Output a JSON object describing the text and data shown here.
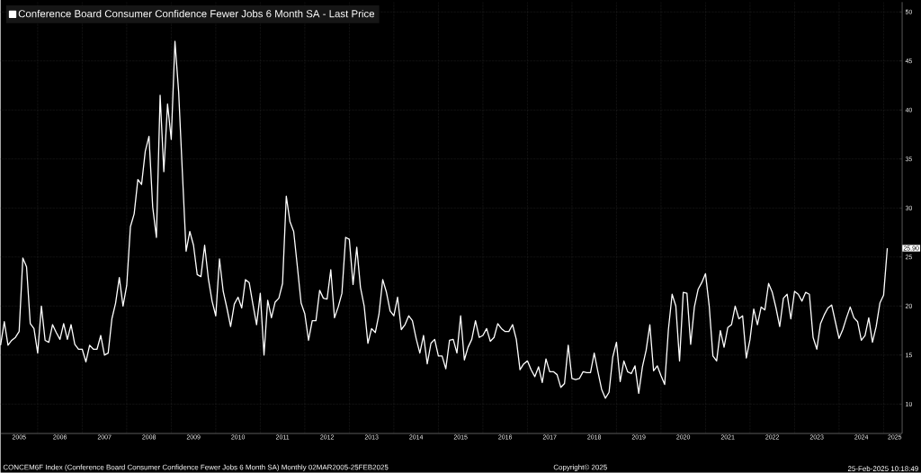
{
  "chart_data": {
    "type": "line",
    "x": [
      "2005-03",
      "2005-04",
      "2005-05",
      "2005-06",
      "2005-07",
      "2005-08",
      "2005-09",
      "2005-10",
      "2005-11",
      "2005-12",
      "2006-01",
      "2006-02",
      "2006-03",
      "2006-04",
      "2006-05",
      "2006-06",
      "2006-07",
      "2006-08",
      "2006-09",
      "2006-10",
      "2006-11",
      "2006-12",
      "2007-01",
      "2007-02",
      "2007-03",
      "2007-04",
      "2007-05",
      "2007-06",
      "2007-07",
      "2007-08",
      "2007-09",
      "2007-10",
      "2007-11",
      "2007-12",
      "2008-01",
      "2008-02",
      "2008-03",
      "2008-04",
      "2008-05",
      "2008-06",
      "2008-07",
      "2008-08",
      "2008-09",
      "2008-10",
      "2008-11",
      "2008-12",
      "2009-01",
      "2009-02",
      "2009-03",
      "2009-04",
      "2009-05",
      "2009-06",
      "2009-07",
      "2009-08",
      "2009-09",
      "2009-10",
      "2009-11",
      "2009-12",
      "2010-01",
      "2010-02",
      "2010-03",
      "2010-04",
      "2010-05",
      "2010-06",
      "2010-07",
      "2010-08",
      "2010-09",
      "2010-10",
      "2010-11",
      "2010-12",
      "2011-01",
      "2011-02",
      "2011-03",
      "2011-04",
      "2011-05",
      "2011-06",
      "2011-07",
      "2011-08",
      "2011-09",
      "2011-10",
      "2011-11",
      "2011-12",
      "2012-01",
      "2012-02",
      "2012-03",
      "2012-04",
      "2012-05",
      "2012-06",
      "2012-07",
      "2012-08",
      "2012-09",
      "2012-10",
      "2012-11",
      "2012-12",
      "2013-01",
      "2013-02",
      "2013-03",
      "2013-04",
      "2013-05",
      "2013-06",
      "2013-07",
      "2013-08",
      "2013-09",
      "2013-10",
      "2013-11",
      "2013-12",
      "2014-01",
      "2014-02",
      "2014-03",
      "2014-04",
      "2014-05",
      "2014-06",
      "2014-07",
      "2014-08",
      "2014-09",
      "2014-10",
      "2014-11",
      "2014-12",
      "2015-01",
      "2015-02",
      "2015-03",
      "2015-04",
      "2015-05",
      "2015-06",
      "2015-07",
      "2015-08",
      "2015-09",
      "2015-10",
      "2015-11",
      "2015-12",
      "2016-01",
      "2016-02",
      "2016-03",
      "2016-04",
      "2016-05",
      "2016-06",
      "2016-07",
      "2016-08",
      "2016-09",
      "2016-10",
      "2016-11",
      "2016-12",
      "2017-01",
      "2017-02",
      "2017-03",
      "2017-04",
      "2017-05",
      "2017-06",
      "2017-07",
      "2017-08",
      "2017-09",
      "2017-10",
      "2017-11",
      "2017-12",
      "2018-01",
      "2018-02",
      "2018-03",
      "2018-04",
      "2018-05",
      "2018-06",
      "2018-07",
      "2018-08",
      "2018-09",
      "2018-10",
      "2018-11",
      "2018-12",
      "2019-01",
      "2019-02",
      "2019-03",
      "2019-04",
      "2019-05",
      "2019-06",
      "2019-07",
      "2019-08",
      "2019-09",
      "2019-10",
      "2019-11",
      "2019-12",
      "2020-01",
      "2020-02",
      "2020-03",
      "2020-04",
      "2020-05",
      "2020-06",
      "2020-07",
      "2020-08",
      "2020-09",
      "2020-10",
      "2020-11",
      "2020-12",
      "2021-01",
      "2021-02",
      "2021-03",
      "2021-04",
      "2021-05",
      "2021-06",
      "2021-07",
      "2021-08",
      "2021-09",
      "2021-10",
      "2021-11",
      "2021-12",
      "2022-01",
      "2022-02",
      "2022-03",
      "2022-04",
      "2022-05",
      "2022-06",
      "2022-07",
      "2022-08",
      "2022-09",
      "2022-10",
      "2022-11",
      "2022-12",
      "2023-01",
      "2023-02",
      "2023-03",
      "2023-04",
      "2023-05",
      "2023-06",
      "2023-07",
      "2023-08",
      "2023-09",
      "2023-10",
      "2023-11",
      "2023-12",
      "2024-01",
      "2024-02",
      "2024-03",
      "2024-04",
      "2024-05",
      "2024-06",
      "2024-07",
      "2024-08",
      "2024-09",
      "2024-10",
      "2024-11",
      "2024-12",
      "2025-01",
      "2025-02"
    ],
    "series": [
      {
        "name": "Conference Board Consumer Confidence Fewer Jobs 6 Month SA - Last Price",
        "color": "#ffffff",
        "values": [
          16.0,
          18.4,
          16.0,
          16.5,
          16.8,
          17.4,
          24.9,
          24.0,
          18.2,
          17.7,
          15.2,
          20.0,
          16.5,
          16.3,
          18.1,
          17.3,
          16.6,
          18.2,
          16.6,
          18.1,
          16.1,
          15.6,
          15.6,
          14.3,
          16.0,
          15.6,
          15.6,
          17.0,
          15.0,
          15.2,
          18.7,
          20.3,
          22.9,
          20.0,
          22.1,
          28.1,
          29.4,
          32.9,
          32.4,
          35.8,
          37.3,
          30.1,
          27.0,
          41.5,
          33.7,
          40.6,
          37.0,
          47.0,
          41.8,
          33.6,
          25.6,
          27.6,
          26.2,
          23.2,
          23.0,
          26.2,
          22.8,
          20.5,
          19.0,
          24.8,
          21.5,
          19.8,
          17.9,
          20.2,
          20.9,
          19.8,
          22.7,
          22.4,
          20.2,
          18.1,
          21.3,
          15.0,
          20.6,
          18.8,
          20.4,
          20.8,
          22.3,
          31.2,
          28.6,
          27.6,
          24.0,
          20.3,
          19.2,
          16.5,
          18.5,
          18.5,
          21.6,
          20.8,
          20.7,
          23.7,
          18.8,
          19.9,
          21.3,
          27.0,
          26.8,
          22.2,
          26.0,
          21.9,
          20.0,
          16.2,
          17.7,
          17.3,
          19.2,
          22.7,
          21.4,
          19.5,
          19.0,
          20.9,
          17.6,
          18.1,
          19.0,
          18.5,
          16.7,
          15.2,
          17.0,
          14.1,
          16.2,
          16.6,
          14.9,
          14.9,
          13.6,
          16.5,
          16.6,
          15.2,
          19.0,
          14.5,
          15.8,
          16.6,
          18.5,
          16.8,
          17.0,
          17.7,
          16.4,
          16.8,
          18.2,
          17.7,
          17.4,
          17.4,
          18.1,
          16.6,
          13.5,
          14.1,
          14.4,
          13.5,
          12.8,
          13.8,
          12.2,
          14.6,
          13.3,
          13.3,
          13.0,
          11.7,
          12.1,
          16.0,
          12.6,
          12.5,
          12.6,
          13.3,
          13.2,
          13.2,
          15.2,
          13.3,
          11.5,
          10.6,
          11.2,
          14.8,
          16.3,
          12.3,
          14.4,
          13.3,
          13.1,
          13.9,
          11.1,
          13.8,
          15.5,
          18.1,
          13.4,
          13.9,
          12.9,
          12.0,
          17.6,
          21.2,
          20.0,
          14.4,
          21.4,
          21.3,
          16.1,
          19.9,
          21.7,
          22.4,
          23.3,
          20.0,
          14.9,
          14.4,
          17.5,
          15.8,
          17.8,
          18.1,
          20.0,
          18.7,
          19.0,
          14.7,
          16.6,
          19.7,
          18.1,
          19.9,
          19.6,
          22.3,
          21.4,
          19.8,
          17.9,
          20.8,
          21.2,
          18.7,
          21.5,
          21.2,
          20.5,
          21.4,
          21.2,
          16.8,
          15.6,
          18.2,
          19.1,
          19.8,
          20.1,
          18.4,
          16.7,
          17.6,
          18.8,
          19.9,
          18.8,
          18.4,
          16.5,
          17.0,
          18.8,
          16.3,
          17.9,
          20.3,
          21.1,
          25.9
        ]
      }
    ],
    "xlim": [
      "2005-03",
      "2025-06"
    ],
    "xticks": [
      {
        "value": "2005-08",
        "label": "2005"
      },
      {
        "value": "2006-07",
        "label": "2006"
      },
      {
        "value": "2007-07",
        "label": "2007"
      },
      {
        "value": "2008-07",
        "label": "2008"
      },
      {
        "value": "2009-07",
        "label": "2009"
      },
      {
        "value": "2010-07",
        "label": "2010"
      },
      {
        "value": "2011-07",
        "label": "2011"
      },
      {
        "value": "2012-07",
        "label": "2012"
      },
      {
        "value": "2013-07",
        "label": "2013"
      },
      {
        "value": "2014-07",
        "label": "2014"
      },
      {
        "value": "2015-07",
        "label": "2015"
      },
      {
        "value": "2016-07",
        "label": "2016"
      },
      {
        "value": "2017-07",
        "label": "2017"
      },
      {
        "value": "2018-07",
        "label": "2018"
      },
      {
        "value": "2019-07",
        "label": "2019"
      },
      {
        "value": "2020-07",
        "label": "2020"
      },
      {
        "value": "2021-07",
        "label": "2021"
      },
      {
        "value": "2022-07",
        "label": "2022"
      },
      {
        "value": "2023-07",
        "label": "2023"
      },
      {
        "value": "2024-07",
        "label": "2024"
      },
      {
        "value": "2025-04",
        "label": "2025"
      },
      {
        "value": "2006-01",
        "label": null
      },
      {
        "value": "2007-01",
        "label": null
      },
      {
        "value": "2008-01",
        "label": null
      },
      {
        "value": "2009-01",
        "label": null
      },
      {
        "value": "2010-01",
        "label": null
      },
      {
        "value": "2011-01",
        "label": null
      },
      {
        "value": "2012-01",
        "label": null
      },
      {
        "value": "2013-01",
        "label": null
      },
      {
        "value": "2014-01",
        "label": null
      },
      {
        "value": "2015-01",
        "label": null
      },
      {
        "value": "2016-01",
        "label": null
      },
      {
        "value": "2017-01",
        "label": null
      },
      {
        "value": "2018-01",
        "label": null
      },
      {
        "value": "2019-01",
        "label": null
      },
      {
        "value": "2020-01",
        "label": null
      },
      {
        "value": "2021-01",
        "label": null
      },
      {
        "value": "2022-01",
        "label": null
      },
      {
        "value": "2023-01",
        "label": null
      },
      {
        "value": "2024-01",
        "label": null
      },
      {
        "value": "2025-01",
        "label": null
      }
    ],
    "ylim": [
      7,
      51
    ],
    "yticks": [
      10,
      15,
      20,
      25,
      30,
      35,
      40,
      45,
      50
    ],
    "grid": true,
    "legend": "top left",
    "annotations": [
      {
        "text": "25.90",
        "x": "2025-02",
        "y": 25.9
      },
      "CONCEM6F Index (Conference Board Consumer Confidence Fewer Jobs 6 Month SA)  Monthly 02MAR2005-25FEB2025",
      "Copyright© 2025",
      "25-Feb-2025 10:18:49"
    ]
  }
}
